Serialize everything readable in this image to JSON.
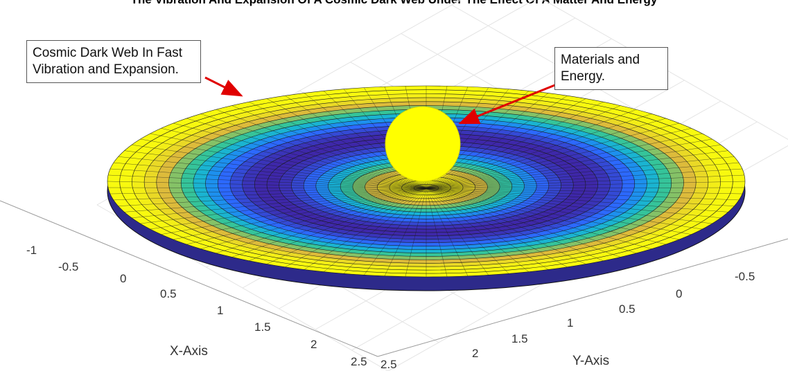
{
  "chart_data": {
    "type": "surface3d",
    "title": "The Vibration And Expansion Of A Cosmic Dark Web Under The Effect Of A Matter And Energy",
    "xlabel": "X-Axis",
    "ylabel": "Y-Axis",
    "x_ticks": [
      "-1",
      "-0.5",
      "0",
      "0.5",
      "1",
      "1.5",
      "2",
      "2.5"
    ],
    "y_ticks": [
      "-0.5",
      "0",
      "0.5",
      "1",
      "1.5",
      "2",
      "2.5"
    ],
    "grid": true,
    "colormap": "parula",
    "annotations": [
      {
        "text_lines": [
          "Cosmic Dark Web In Fast",
          "Vibration and Expansion."
        ],
        "target": "outer rim of surface"
      },
      {
        "text_lines": [
          "Materials and",
          "Energy."
        ],
        "target": "central sphere"
      }
    ],
    "sphere_color": "#ffff00",
    "arrow_color": "#e00000"
  }
}
